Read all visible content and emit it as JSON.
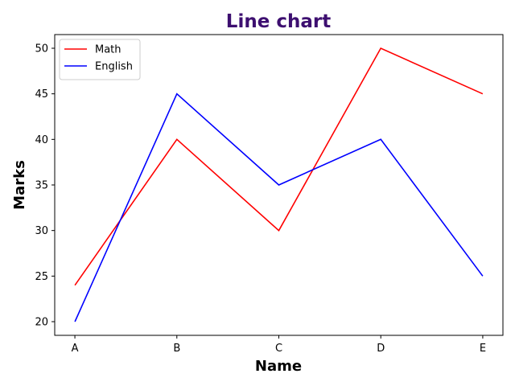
{
  "chart_data": {
    "type": "line",
    "title": "Line chart",
    "title_color": "#3d0f70",
    "xlabel": "Name",
    "ylabel": "Marks",
    "categories": [
      "A",
      "B",
      "C",
      "D",
      "E"
    ],
    "ylim": [
      18.5,
      51.5
    ],
    "yticks": [
      20,
      25,
      30,
      35,
      40,
      45,
      50
    ],
    "series": [
      {
        "name": "Math",
        "color": "#ff0000",
        "values": [
          24,
          40,
          30,
          50,
          45
        ]
      },
      {
        "name": "English",
        "color": "#0000ff",
        "values": [
          20,
          45,
          35,
          40,
          25
        ]
      }
    ],
    "legend": "top-left",
    "grid": false
  }
}
